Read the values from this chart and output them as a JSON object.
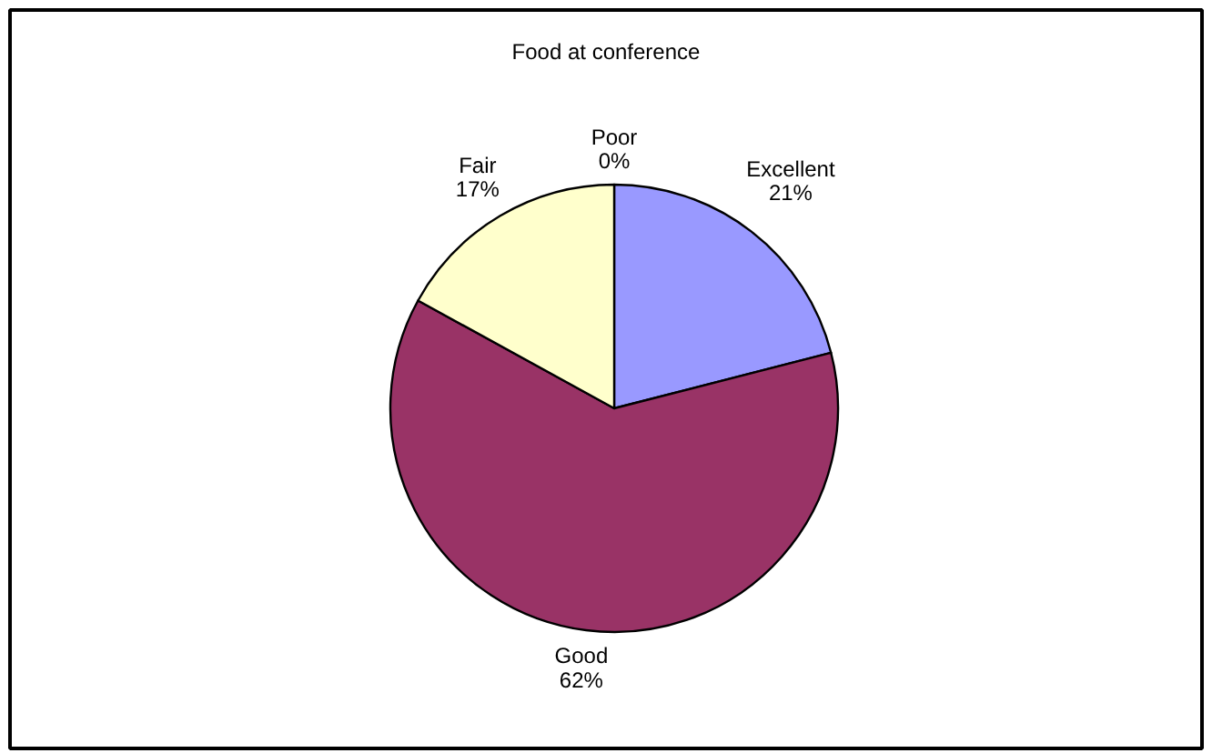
{
  "chart_data": {
    "type": "pie",
    "title": "Food at conference",
    "categories": [
      "Excellent",
      "Good",
      "Fair",
      "Poor"
    ],
    "values": [
      21,
      62,
      17,
      0
    ],
    "colors": [
      "#9999ff",
      "#993366",
      "#ffffcc",
      null
    ],
    "value_labels": [
      "21%",
      "62%",
      "17%",
      "0%"
    ]
  }
}
